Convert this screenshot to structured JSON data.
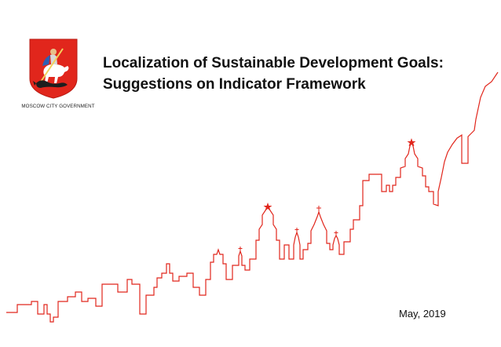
{
  "organization": {
    "name": "MOSCOW CITY GOVERNMENT",
    "emblem_icon": "moscow-coat-of-arms-icon"
  },
  "title": {
    "line1": "Localization of Sustainable Development Goals:",
    "line2": "Suggestions on Indicator Framework"
  },
  "date": "May, 2019",
  "colors": {
    "accent_red": "#e1261c",
    "text": "#111111"
  }
}
